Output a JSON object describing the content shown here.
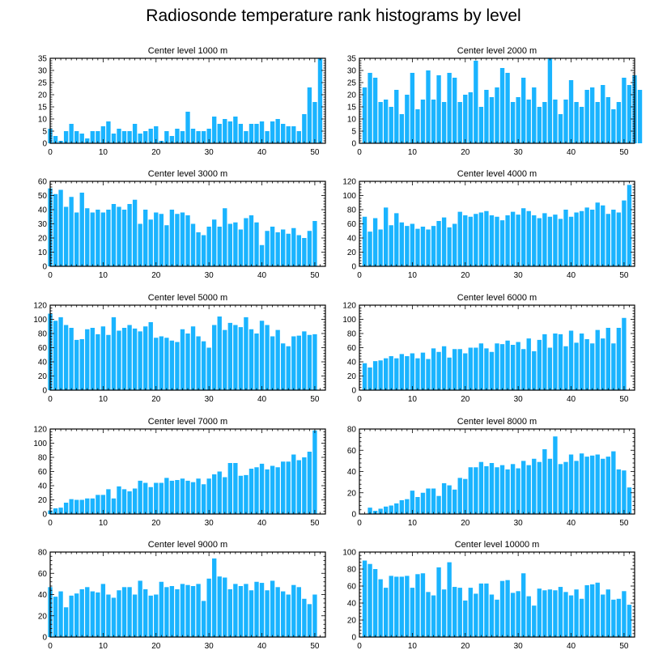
{
  "figure_title": "Radiosonde temperature rank histograms by level",
  "colors": {
    "bar": "#1ab4ff",
    "axis": "#000000",
    "background": "#ffffff"
  },
  "chart_data": [
    {
      "type": "bar",
      "title": "Center level 1000 m",
      "ylim": [
        0,
        35
      ],
      "yticks": [
        0,
        5,
        10,
        15,
        20,
        25,
        30,
        35
      ],
      "xlim": [
        0,
        52
      ],
      "xticks": [
        0,
        10,
        20,
        30,
        40,
        50
      ],
      "values": [
        6,
        3,
        1,
        5,
        8,
        5,
        4,
        2,
        5,
        5,
        7,
        9,
        4,
        6,
        5,
        5,
        8,
        4,
        5,
        6,
        7,
        1,
        5,
        3,
        6,
        5,
        13,
        6,
        5,
        5,
        6,
        11,
        8,
        10,
        9,
        11,
        8,
        5,
        8,
        8,
        9,
        5,
        9,
        10,
        8,
        7,
        7,
        5,
        12,
        23,
        17,
        35
      ]
    },
    {
      "type": "bar",
      "title": "Center level 2000 m",
      "ylim": [
        0,
        35
      ],
      "yticks": [
        0,
        5,
        10,
        15,
        20,
        25,
        30,
        35
      ],
      "xlim": [
        0,
        52
      ],
      "xticks": [
        0,
        10,
        20,
        30,
        40,
        50
      ],
      "values": [
        0,
        23,
        29,
        27,
        17,
        18,
        15,
        22,
        12,
        20,
        29,
        14,
        18,
        30,
        18,
        28,
        17,
        29,
        27,
        17,
        20,
        21,
        34,
        15,
        22,
        19,
        23,
        31,
        29,
        17,
        19,
        27,
        18,
        23,
        15,
        17,
        35,
        18,
        12,
        18,
        26,
        17,
        15,
        22,
        23,
        17,
        24,
        19,
        14,
        17,
        27,
        24,
        28,
        22
      ]
    },
    {
      "type": "bar",
      "title": "Center level 3000 m",
      "ylim": [
        0,
        60
      ],
      "yticks": [
        0,
        10,
        20,
        30,
        40,
        50,
        60
      ],
      "xlim": [
        0,
        52
      ],
      "xticks": [
        0,
        10,
        20,
        30,
        40,
        50
      ],
      "values": [
        55,
        51,
        54,
        42,
        49,
        38,
        52,
        41,
        38,
        40,
        38,
        40,
        44,
        42,
        40,
        44,
        47,
        30,
        40,
        33,
        38,
        37,
        29,
        40,
        37,
        38,
        36,
        30,
        24,
        22,
        28,
        33,
        28,
        41,
        30,
        31,
        26,
        34,
        36,
        31,
        15,
        25,
        28,
        24,
        26,
        23,
        27,
        22,
        20,
        25,
        32
      ]
    },
    {
      "type": "bar",
      "title": "Center level 4000 m",
      "ylim": [
        0,
        120
      ],
      "yticks": [
        0,
        20,
        40,
        60,
        80,
        100,
        120
      ],
      "xlim": [
        0,
        52
      ],
      "xticks": [
        0,
        10,
        20,
        30,
        40,
        50
      ],
      "values": [
        0,
        70,
        49,
        68,
        52,
        83,
        58,
        75,
        62,
        57,
        60,
        53,
        56,
        52,
        57,
        64,
        69,
        55,
        60,
        77,
        72,
        70,
        74,
        76,
        78,
        72,
        70,
        65,
        72,
        77,
        73,
        82,
        78,
        72,
        68,
        75,
        70,
        73,
        67,
        80,
        70,
        76,
        78,
        83,
        80,
        90,
        86,
        74,
        80,
        76,
        93,
        115
      ]
    },
    {
      "type": "bar",
      "title": "Center level 5000 m",
      "ylim": [
        0,
        120
      ],
      "yticks": [
        0,
        20,
        40,
        60,
        80,
        100,
        120
      ],
      "xlim": [
        0,
        52
      ],
      "xticks": [
        0,
        10,
        20,
        30,
        40,
        50
      ],
      "values": [
        108,
        98,
        103,
        92,
        88,
        71,
        72,
        86,
        88,
        79,
        90,
        78,
        103,
        84,
        88,
        92,
        87,
        83,
        90,
        96,
        74,
        76,
        74,
        70,
        68,
        86,
        80,
        90,
        76,
        69,
        60,
        92,
        104,
        85,
        95,
        92,
        89,
        103,
        86,
        80,
        98,
        92,
        76,
        85,
        66,
        62,
        76,
        77,
        83,
        78,
        79
      ]
    },
    {
      "type": "bar",
      "title": "Center level 6000 m",
      "ylim": [
        0,
        120
      ],
      "yticks": [
        0,
        20,
        40,
        60,
        80,
        100,
        120
      ],
      "xlim": [
        0,
        52
      ],
      "xticks": [
        0,
        10,
        20,
        30,
        40,
        50
      ],
      "values": [
        0,
        38,
        32,
        41,
        42,
        45,
        48,
        45,
        51,
        48,
        52,
        45,
        53,
        44,
        59,
        54,
        62,
        46,
        58,
        58,
        52,
        60,
        60,
        66,
        59,
        54,
        66,
        65,
        70,
        64,
        68,
        58,
        73,
        55,
        71,
        79,
        60,
        80,
        79,
        62,
        84,
        67,
        80,
        72,
        66,
        85,
        73,
        88,
        66,
        88,
        102
      ]
    },
    {
      "type": "bar",
      "title": "Center level 7000 m",
      "ylim": [
        0,
        120
      ],
      "yticks": [
        0,
        20,
        40,
        60,
        80,
        100,
        120
      ],
      "xlim": [
        0,
        52
      ],
      "xticks": [
        0,
        10,
        20,
        30,
        40,
        50
      ],
      "values": [
        5,
        8,
        9,
        16,
        21,
        20,
        20,
        22,
        22,
        27,
        27,
        35,
        22,
        39,
        35,
        32,
        36,
        47,
        44,
        38,
        44,
        44,
        51,
        47,
        48,
        50,
        47,
        45,
        50,
        42,
        50,
        56,
        60,
        52,
        72,
        72,
        54,
        55,
        64,
        66,
        71,
        63,
        68,
        66,
        74,
        74,
        84,
        76,
        80,
        88,
        118
      ]
    },
    {
      "type": "bar",
      "title": "Center level 8000 m",
      "ylim": [
        0,
        80
      ],
      "yticks": [
        0,
        20,
        40,
        60,
        80
      ],
      "xlim": [
        0,
        52
      ],
      "xticks": [
        0,
        10,
        20,
        30,
        40,
        50
      ],
      "values": [
        0,
        0,
        6,
        3,
        5,
        7,
        8,
        10,
        13,
        14,
        22,
        16,
        20,
        24,
        24,
        17,
        29,
        27,
        23,
        34,
        33,
        44,
        44,
        49,
        45,
        48,
        44,
        46,
        42,
        47,
        43,
        50,
        46,
        52,
        49,
        61,
        52,
        73,
        47,
        49,
        56,
        50,
        57,
        54,
        55,
        56,
        52,
        54,
        59,
        42,
        41,
        25
      ]
    },
    {
      "type": "bar",
      "title": "Center level 9000 m",
      "ylim": [
        0,
        80
      ],
      "yticks": [
        0,
        20,
        40,
        60,
        80
      ],
      "xlim": [
        0,
        52
      ],
      "xticks": [
        0,
        10,
        20,
        30,
        40,
        50
      ],
      "values": [
        47,
        38,
        43,
        28,
        39,
        41,
        45,
        47,
        43,
        42,
        50,
        40,
        37,
        44,
        47,
        47,
        40,
        53,
        45,
        39,
        40,
        52,
        47,
        48,
        45,
        50,
        49,
        48,
        50,
        34,
        55,
        74,
        57,
        56,
        45,
        50,
        48,
        50,
        44,
        52,
        51,
        44,
        53,
        47,
        43,
        40,
        49,
        47,
        36,
        31,
        40
      ]
    },
    {
      "type": "bar",
      "title": "Center level 10000 m",
      "ylim": [
        0,
        100
      ],
      "yticks": [
        0,
        20,
        40,
        60,
        80,
        100
      ],
      "xlim": [
        0,
        52
      ],
      "xticks": [
        0,
        10,
        20,
        30,
        40,
        50
      ],
      "values": [
        0,
        90,
        86,
        80,
        68,
        58,
        72,
        71,
        71,
        72,
        58,
        74,
        75,
        53,
        49,
        82,
        56,
        88,
        59,
        58,
        43,
        58,
        51,
        63,
        63,
        50,
        44,
        66,
        67,
        52,
        54,
        75,
        48,
        37,
        57,
        55,
        56,
        55,
        59,
        53,
        49,
        56,
        45,
        61,
        62,
        64,
        50,
        56,
        44,
        45,
        54,
        38
      ]
    }
  ]
}
